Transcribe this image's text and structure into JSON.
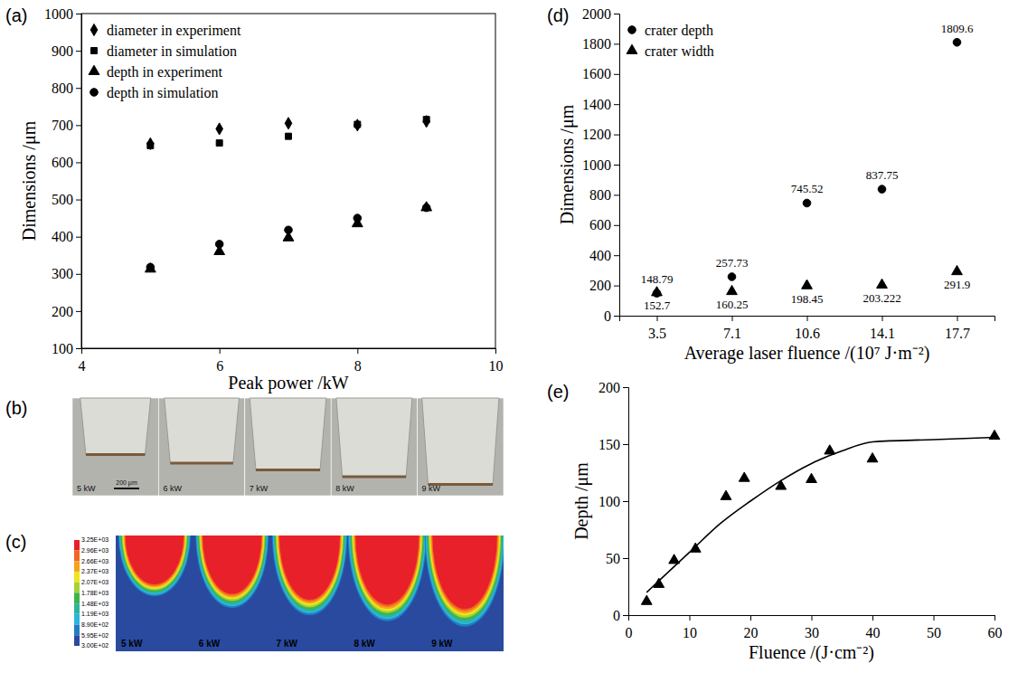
{
  "chart_data": [
    {
      "panel": "(a)",
      "type": "scatter",
      "xlabel": "Peak power /kW",
      "ylabel": "Dimensions /μm",
      "x": [
        5,
        6,
        7,
        8,
        9
      ],
      "xlim": [
        4,
        10
      ],
      "xticks": [
        4,
        6,
        8,
        10
      ],
      "ylim": [
        100,
        1000
      ],
      "yticks": [
        100,
        200,
        300,
        400,
        500,
        600,
        700,
        800,
        900,
        1000
      ],
      "legend": "upper left",
      "series": [
        {
          "name": "diameter in experiment",
          "color": "#000000",
          "marker": "diamond",
          "values": [
            650,
            690,
            705,
            700,
            710
          ]
        },
        {
          "name": "diameter in simulation",
          "color": "#000000",
          "marker": "square",
          "values": [
            645,
            652,
            670,
            702,
            715
          ]
        },
        {
          "name": "depth in experiment",
          "color": "#000000",
          "marker": "triangle",
          "values": [
            313,
            360,
            397,
            435,
            478
          ]
        },
        {
          "name": "depth in simulation",
          "color": "#000000",
          "marker": "circle",
          "values": [
            318,
            380,
            418,
            450,
            478
          ]
        }
      ]
    },
    {
      "panel": "(b)",
      "type": "image",
      "categories": [
        "5 kW",
        "6 kW",
        "7 kW",
        "8 kW",
        "9 kW"
      ],
      "scale_bar": "200 μm"
    },
    {
      "panel": "(c)",
      "type": "contour",
      "categories": [
        "5 kW",
        "6 kW",
        "7 kW",
        "8 kW",
        "9 kW"
      ],
      "colorbar": {
        "range": [
          300,
          3250
        ],
        "ticks": [
          {
            "value": 3250,
            "label": "3.25E+03"
          },
          {
            "value": 2960,
            "label": "2.96E+03"
          },
          {
            "value": 2660,
            "label": "2.66E+03"
          },
          {
            "value": 2370,
            "label": "2.37E+03"
          },
          {
            "value": 2070,
            "label": "2.07E+03"
          },
          {
            "value": 1780,
            "label": "1.78E+03"
          },
          {
            "value": 1480,
            "label": "1.48E+03"
          },
          {
            "value": 1190,
            "label": "1.19E+03"
          },
          {
            "value": 890,
            "label": "8.90E+02"
          },
          {
            "value": 595,
            "label": "5.95E+02"
          },
          {
            "value": 300,
            "label": "3.00E+02"
          }
        ]
      },
      "colors": [
        "#e8202a",
        "#f26522",
        "#f7a21b",
        "#f0e51a",
        "#a6d13a",
        "#3cb54a",
        "#2bb59c",
        "#2db4e0",
        "#1f7fc2",
        "#2a4aa0"
      ]
    },
    {
      "panel": "(d)",
      "type": "scatter",
      "xlabel": "Average laser fluence /(10⁷ J·m⁻²)",
      "ylabel": "Dimensions /μm",
      "categories": [
        3.5,
        7.1,
        10.6,
        14.1,
        17.7
      ],
      "ylim": [
        0,
        2000
      ],
      "yticks": [
        0,
        200,
        400,
        600,
        800,
        1000,
        1200,
        1400,
        1600,
        1800,
        2000
      ],
      "legend": "upper left",
      "data_labels": true,
      "series": [
        {
          "name": "crater depth",
          "color": "#000000",
          "marker": "circle",
          "values": [
            148.79,
            257.73,
            745.52,
            837.75,
            1809.6
          ]
        },
        {
          "name": "crater width",
          "color": "#000000",
          "marker": "triangle",
          "values": [
            152.7,
            160.25,
            198.45,
            203.222,
            291.9
          ]
        }
      ]
    },
    {
      "panel": "(e)",
      "type": "scatter",
      "xlabel": "Fluence /(J·cm⁻²)",
      "ylabel": "Depth /μm",
      "xlim": [
        0,
        60
      ],
      "xticks": [
        0,
        10,
        20,
        30,
        40,
        50,
        60
      ],
      "ylim": [
        0,
        200
      ],
      "yticks": [
        0,
        50,
        100,
        150,
        200
      ],
      "series": [
        {
          "type": "scatter",
          "color": "#000000",
          "marker": "triangle",
          "x": [
            3,
            5,
            7.5,
            11,
            16,
            19,
            25,
            30,
            33,
            40,
            60
          ],
          "values": [
            12,
            27,
            48,
            58,
            104,
            120,
            113,
            119,
            144,
            137,
            157
          ]
        },
        {
          "type": "line",
          "color": "#000000",
          "line_style": "solid",
          "x": [
            3,
            5,
            10,
            15,
            20,
            25,
            30,
            35,
            40,
            50,
            60
          ],
          "values": [
            20,
            30,
            55,
            80,
            100,
            118,
            133,
            144,
            152,
            154,
            156
          ]
        }
      ]
    }
  ]
}
